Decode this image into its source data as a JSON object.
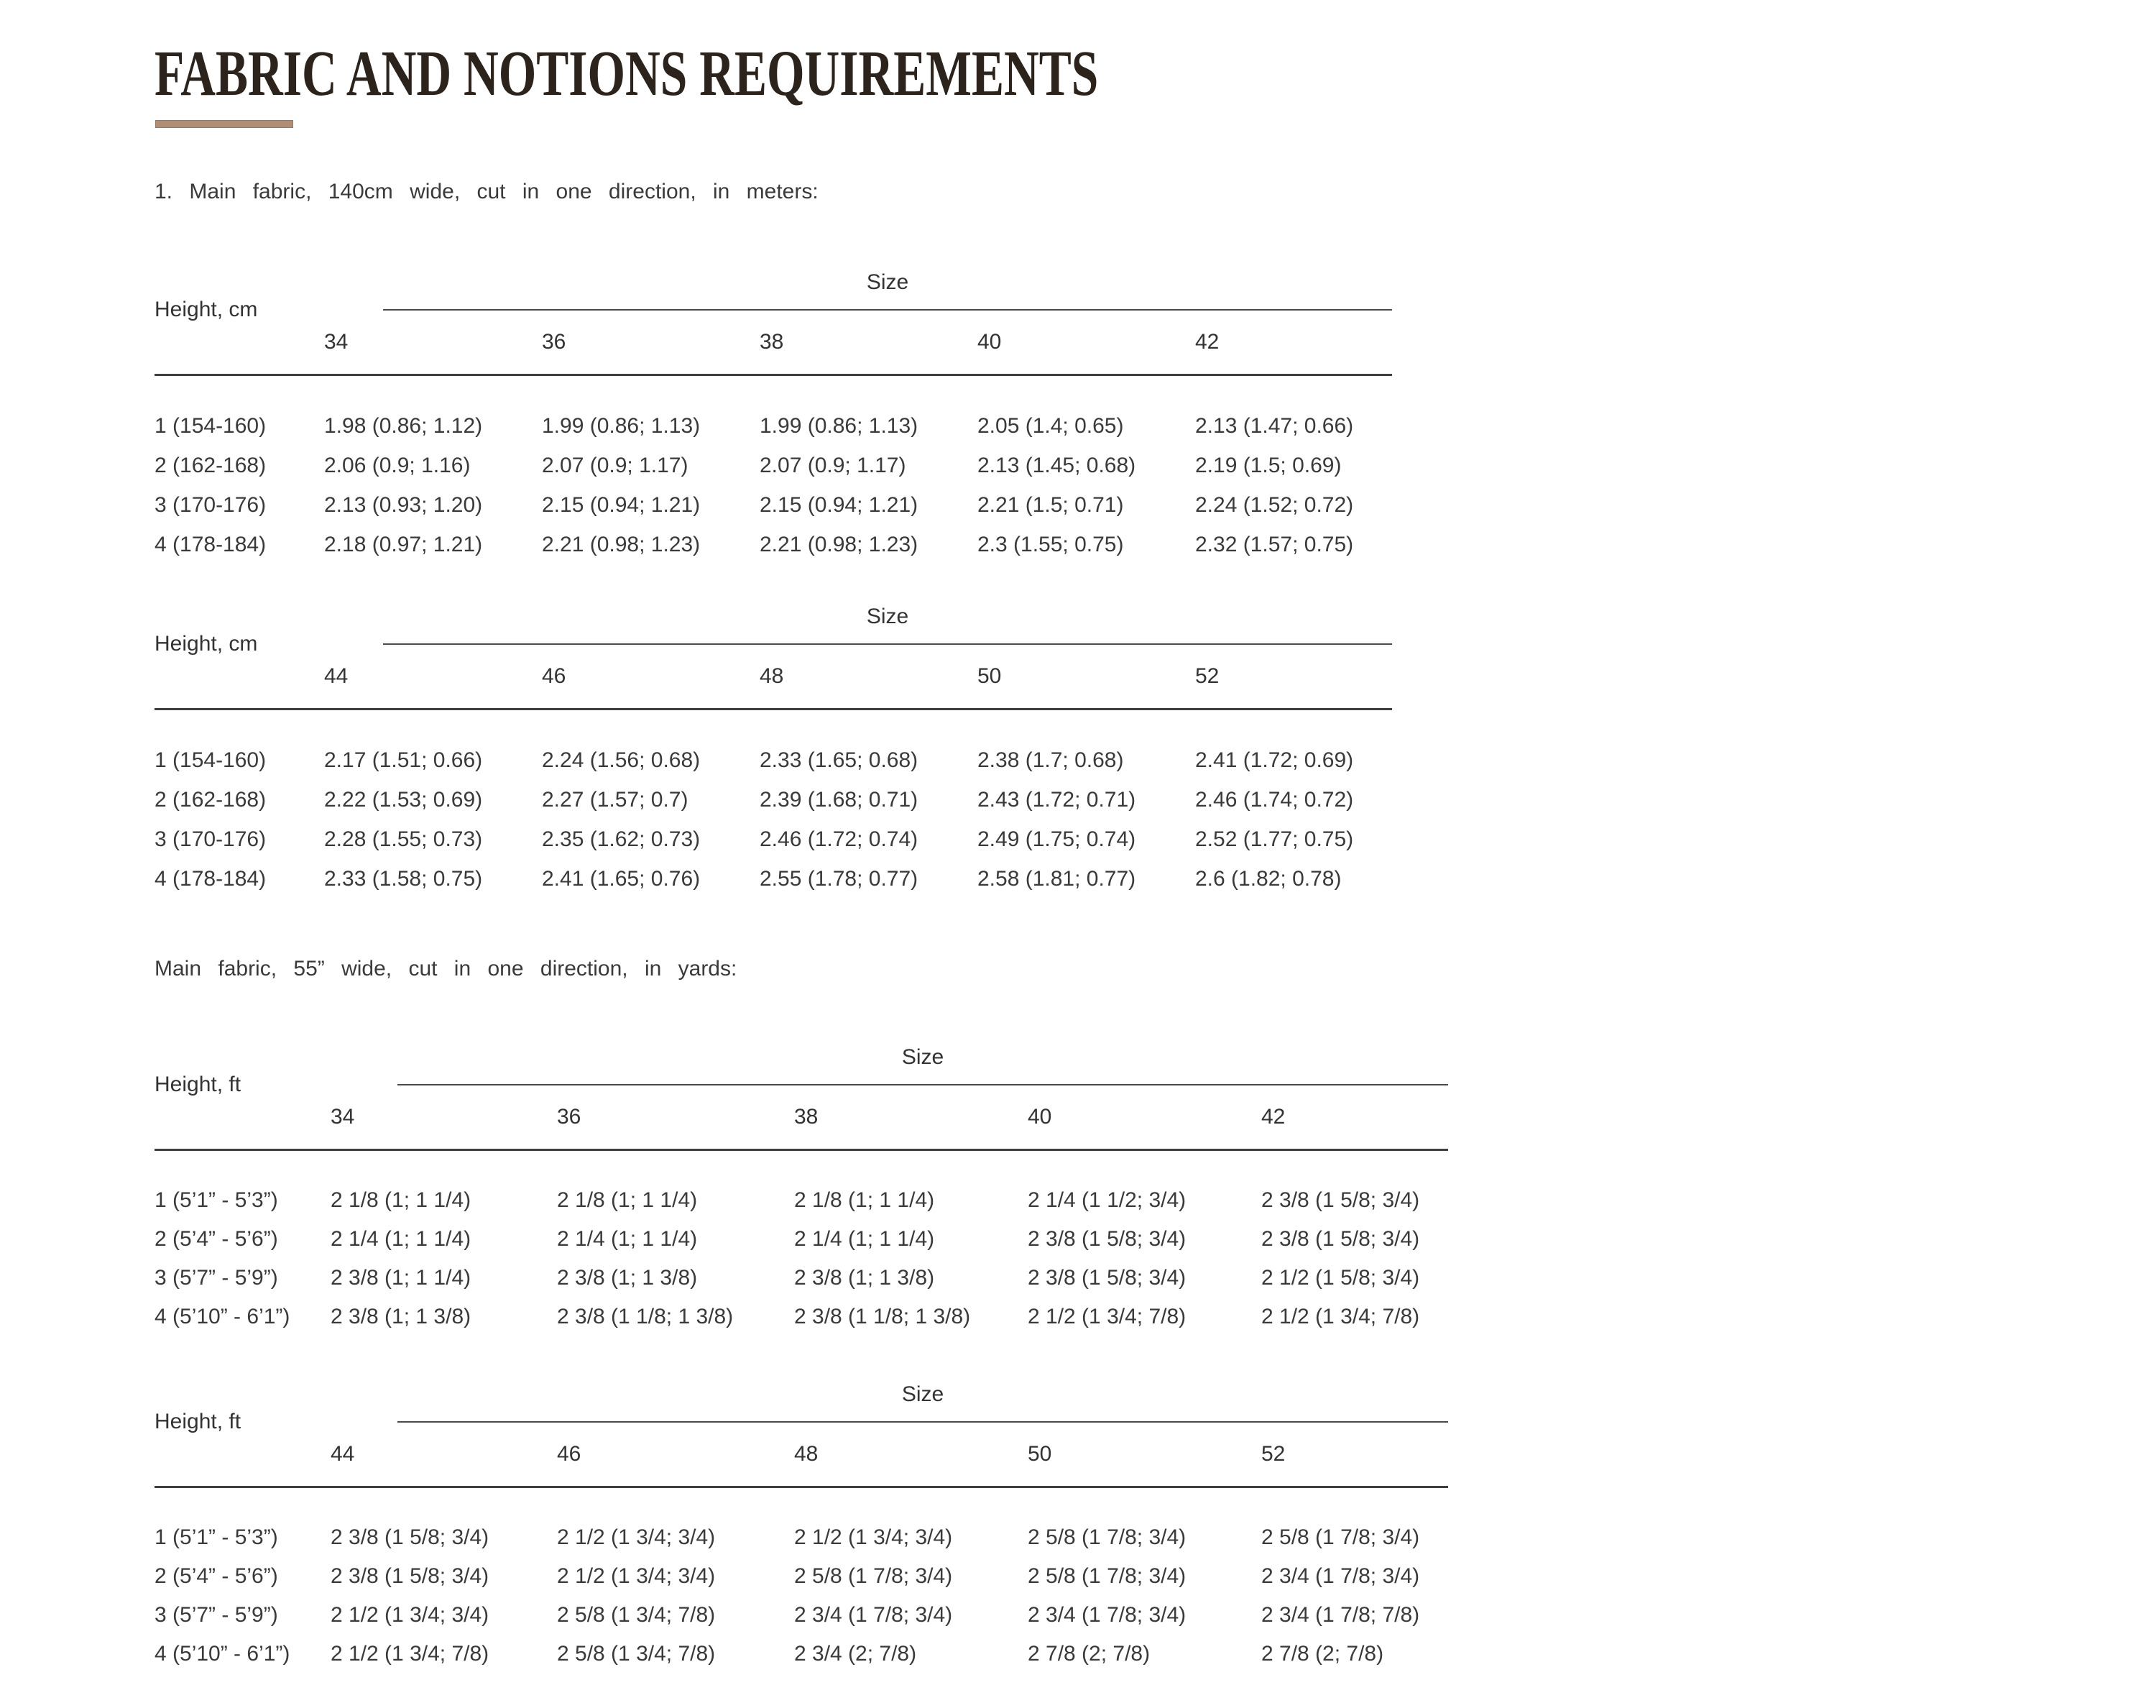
{
  "title": "FABRIC AND NOTIONS REQUIREMENTS",
  "accent_color": "#b18d74",
  "text_color": "#3a3a3a",
  "intros": [
    "1. Main fabric, 140cm wide, cut in one direction, in meters:",
    "Main fabric, 55” wide, cut in one direction, in yards:"
  ],
  "tables": [
    {
      "height_label": "Height, cm",
      "size_label": "Size",
      "sizes": [
        "34",
        "36",
        "38",
        "40",
        "42"
      ],
      "rows": [
        {
          "height": "1 (154-160)",
          "values": [
            "1.98 (0.86; 1.12)",
            "1.99 (0.86; 1.13)",
            "1.99 (0.86; 1.13)",
            "2.05 (1.4; 0.65)",
            "2.13 (1.47; 0.66)"
          ]
        },
        {
          "height": "2 (162-168)",
          "values": [
            "2.06 (0.9; 1.16)",
            "2.07 (0.9; 1.17)",
            "2.07 (0.9; 1.17)",
            "2.13 (1.45; 0.68)",
            "2.19 (1.5; 0.69)"
          ]
        },
        {
          "height": "3 (170-176)",
          "values": [
            "2.13 (0.93; 1.20)",
            "2.15 (0.94; 1.21)",
            "2.15 (0.94; 1.21)",
            "2.21 (1.5; 0.71)",
            "2.24 (1.52; 0.72)"
          ]
        },
        {
          "height": "4 (178-184)",
          "values": [
            "2.18 (0.97; 1.21)",
            "2.21 (0.98; 1.23)",
            "2.21 (0.98; 1.23)",
            "2.3 (1.55; 0.75)",
            "2.32 (1.57; 0.75)"
          ]
        }
      ]
    },
    {
      "height_label": "Height, cm",
      "size_label": "Size",
      "sizes": [
        "44",
        "46",
        "48",
        "50",
        "52"
      ],
      "rows": [
        {
          "height": "1 (154-160)",
          "values": [
            "2.17 (1.51; 0.66)",
            "2.24 (1.56; 0.68)",
            "2.33 (1.65; 0.68)",
            "2.38 (1.7; 0.68)",
            "2.41 (1.72; 0.69)"
          ]
        },
        {
          "height": "2 (162-168)",
          "values": [
            "2.22 (1.53; 0.69)",
            "2.27 (1.57; 0.7)",
            "2.39 (1.68; 0.71)",
            "2.43 (1.72; 0.71)",
            "2.46 (1.74; 0.72)"
          ]
        },
        {
          "height": "3 (170-176)",
          "values": [
            "2.28 (1.55; 0.73)",
            "2.35 (1.62; 0.73)",
            "2.46 (1.72; 0.74)",
            "2.49 (1.75; 0.74)",
            "2.52 (1.77; 0.75)"
          ]
        },
        {
          "height": "4 (178-184)",
          "values": [
            "2.33 (1.58; 0.75)",
            "2.41 (1.65; 0.76)",
            "2.55 (1.78; 0.77)",
            "2.58 (1.81; 0.77)",
            "2.6 (1.82; 0.78)"
          ]
        }
      ]
    },
    {
      "height_label": "Height, ft",
      "size_label": "Size",
      "sizes": [
        "34",
        "36",
        "38",
        "40",
        "42"
      ],
      "rows": [
        {
          "height": "1 (5’1” - 5’3”)",
          "values": [
            "2 1/8 (1; 1 1/4)",
            "2 1/8 (1; 1 1/4)",
            "2 1/8 (1; 1 1/4)",
            "2 1/4 (1 1/2; 3/4)",
            "2 3/8 (1 5/8; 3/4)"
          ]
        },
        {
          "height": "2 (5’4” - 5’6”)",
          "values": [
            "2 1/4 (1; 1 1/4)",
            "2 1/4 (1; 1 1/4)",
            "2 1/4 (1; 1 1/4)",
            "2 3/8 (1 5/8; 3/4)",
            "2 3/8 (1 5/8; 3/4)"
          ]
        },
        {
          "height": "3 (5’7” - 5’9”)",
          "values": [
            "2 3/8 (1; 1 1/4)",
            "2 3/8 (1; 1 3/8)",
            "2 3/8 (1; 1 3/8)",
            "2 3/8 (1 5/8; 3/4)",
            "2 1/2 (1 5/8; 3/4)"
          ]
        },
        {
          "height": "4 (5’10” - 6’1”)",
          "values": [
            "2 3/8 (1; 1 3/8)",
            "2 3/8 (1 1/8; 1 3/8)",
            "2 3/8 (1 1/8; 1 3/8)",
            "2 1/2 (1 3/4; 7/8)",
            "2 1/2 (1 3/4; 7/8)"
          ]
        }
      ]
    },
    {
      "height_label": "Height, ft",
      "size_label": "Size",
      "sizes": [
        "44",
        "46",
        "48",
        "50",
        "52"
      ],
      "rows": [
        {
          "height": "1 (5’1” - 5’3”)",
          "values": [
            "2 3/8 (1 5/8; 3/4)",
            "2 1/2 (1 3/4; 3/4)",
            "2 1/2 (1 3/4; 3/4)",
            "2 5/8 (1 7/8; 3/4)",
            "2 5/8 (1 7/8; 3/4)"
          ]
        },
        {
          "height": "2 (5’4” - 5’6”)",
          "values": [
            "2 3/8 (1 5/8; 3/4)",
            "2 1/2 (1 3/4; 3/4)",
            "2 5/8 (1 7/8; 3/4)",
            "2 5/8 (1 7/8; 3/4)",
            "2 3/4 (1 7/8; 3/4)"
          ]
        },
        {
          "height": "3 (5’7” - 5’9”)",
          "values": [
            "2 1/2 (1 3/4; 3/4)",
            "2 5/8 (1 3/4; 7/8)",
            "2 3/4 (1 7/8; 3/4)",
            "2 3/4 (1 7/8; 3/4)",
            "2 3/4 (1 7/8; 7/8)"
          ]
        },
        {
          "height": "4 (5’10” - 6’1”)",
          "values": [
            "2 1/2 (1 3/4; 7/8)",
            "2 5/8 (1 3/4; 7/8)",
            "2 3/4 (2; 7/8)",
            "2 7/8 (2; 7/8)",
            "2 7/8 (2; 7/8)"
          ]
        }
      ]
    }
  ]
}
